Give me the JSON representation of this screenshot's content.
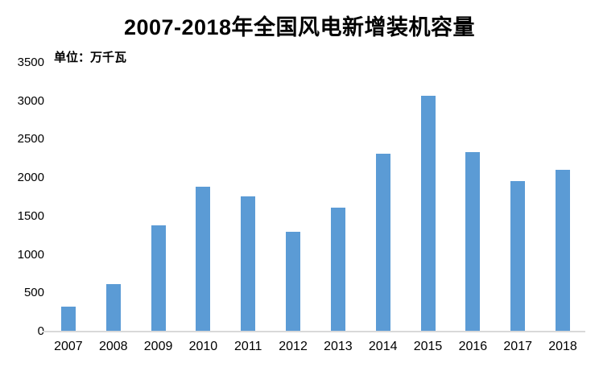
{
  "chart_data": {
    "type": "bar",
    "title": "2007-2018年全国风电新增装机容量",
    "unit_label": "单位：万千瓦",
    "categories": [
      "2007",
      "2008",
      "2009",
      "2010",
      "2011",
      "2012",
      "2013",
      "2014",
      "2015",
      "2016",
      "2017",
      "2018"
    ],
    "values": [
      330,
      620,
      1380,
      1890,
      1760,
      1300,
      1610,
      2320,
      3070,
      2340,
      1960,
      2110
    ],
    "ylabel": "",
    "xlabel": "",
    "ylim": [
      0,
      3500
    ],
    "yticks": [
      0,
      500,
      1000,
      1500,
      2000,
      2500,
      3000,
      3500
    ],
    "grid": false,
    "legend": false,
    "bar_color": "#5B9BD5",
    "axis_line_color": "#D9D9D9",
    "text_color": "#000000"
  }
}
